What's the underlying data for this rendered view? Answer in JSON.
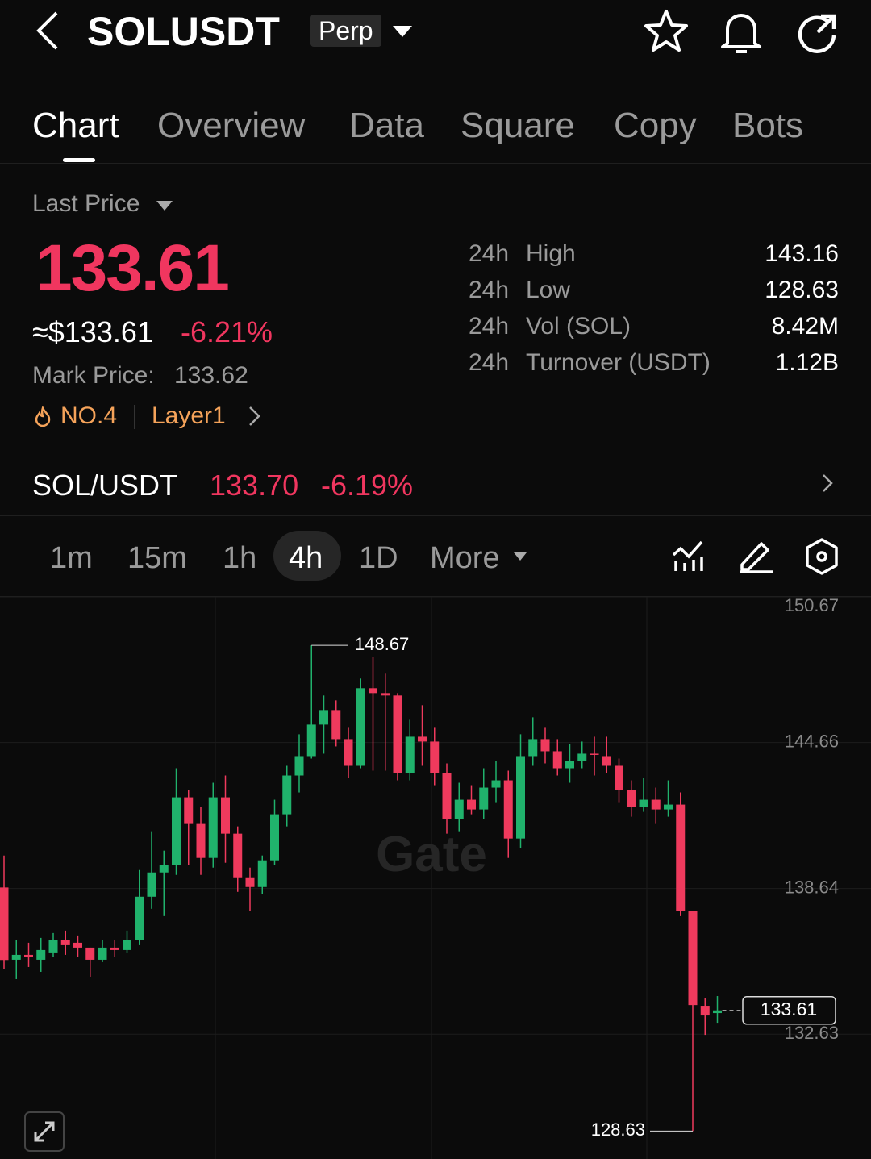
{
  "header": {
    "symbol": "SOLUSDT",
    "badge": "Perp"
  },
  "tabs": [
    "Chart",
    "Overview",
    "Data",
    "Square",
    "Copy",
    "Bots"
  ],
  "price": {
    "label": "Last Price",
    "last": "133.61",
    "usd": "≈$133.61",
    "change": "-6.21%",
    "mark_label": "Mark Price:",
    "mark": "133.62",
    "rank": "NO.4",
    "sector": "Layer1"
  },
  "stats": [
    {
      "period": "24h",
      "name": "High",
      "value": "143.16"
    },
    {
      "period": "24h",
      "name": "Low",
      "value": "128.63"
    },
    {
      "period": "24h",
      "name": "Vol (SOL)",
      "value": "8.42M"
    },
    {
      "period": "24h",
      "name": "Turnover (USDT)",
      "value": "1.12B"
    }
  ],
  "spot": {
    "pair": "SOL/USDT",
    "price": "133.70",
    "change": "-6.19%"
  },
  "intervals": [
    "1m",
    "15m",
    "1h",
    "4h",
    "1D",
    "More"
  ],
  "chart_data": {
    "type": "candlestick",
    "watermark": "Gate",
    "ylim": [
      127.48,
      150.67
    ],
    "yticks": [
      150.67,
      144.66,
      138.64,
      132.63
    ],
    "grid": true,
    "up_color": "#20b26c",
    "down_color": "#ef3a5d",
    "open": [
      138.68,
      135.7,
      135.9,
      135.7,
      136.0,
      136.5,
      136.4,
      136.2,
      135.7,
      136.2,
      136.1,
      136.5,
      138.3,
      139.3,
      139.6,
      142.4,
      141.3,
      139.9,
      142.4,
      140.9,
      139.1,
      138.7,
      139.8,
      141.7,
      143.3,
      144.1,
      145.4,
      146.0,
      144.8,
      143.7,
      146.9,
      146.7,
      146.6,
      143.4,
      144.9,
      144.7,
      143.4,
      141.5,
      142.3,
      141.9,
      142.8,
      143.1,
      140.7,
      144.1,
      144.8,
      144.3,
      143.6,
      143.9,
      144.2,
      144.1,
      143.7,
      142.7,
      142.0,
      142.3,
      141.9,
      142.1,
      137.7,
      133.8,
      133.5
    ],
    "high": [
      140.0,
      136.5,
      136.4,
      136.6,
      136.8,
      136.9,
      136.7,
      136.2,
      136.5,
      136.5,
      136.9,
      139.4,
      141.0,
      140.2,
      143.6,
      142.7,
      142.0,
      143.0,
      143.3,
      141.2,
      139.5,
      140.0,
      142.3,
      143.7,
      145.0,
      148.67,
      146.6,
      146.4,
      145.3,
      147.3,
      148.2,
      147.5,
      146.7,
      145.6,
      146.2,
      145.3,
      143.8,
      143.0,
      142.9,
      143.6,
      143.9,
      143.5,
      145.0,
      145.7,
      145.3,
      144.8,
      144.6,
      144.7,
      144.9,
      144.9,
      144.0,
      143.1,
      143.2,
      142.8,
      143.1,
      142.6,
      137.7,
      134.1,
      134.2
    ],
    "low": [
      135.3,
      134.9,
      135.4,
      135.2,
      135.8,
      135.9,
      135.8,
      135.0,
      135.6,
      135.8,
      136.0,
      136.3,
      137.8,
      137.5,
      139.2,
      139.6,
      139.2,
      139.5,
      139.7,
      138.5,
      137.7,
      138.4,
      139.6,
      141.2,
      142.6,
      144.0,
      144.2,
      144.5,
      143.2,
      143.6,
      143.5,
      143.5,
      143.1,
      143.1,
      143.7,
      142.9,
      140.9,
      141.0,
      141.7,
      141.5,
      142.2,
      139.9,
      140.3,
      143.7,
      143.8,
      143.3,
      143.0,
      143.6,
      143.3,
      143.4,
      142.2,
      141.6,
      141.8,
      141.3,
      141.6,
      137.5,
      128.63,
      132.6,
      133.1
    ],
    "close": [
      135.69,
      135.9,
      135.8,
      136.1,
      136.5,
      136.3,
      136.2,
      135.7,
      136.2,
      136.1,
      136.5,
      138.3,
      139.3,
      139.6,
      142.4,
      141.3,
      139.9,
      142.4,
      140.9,
      139.1,
      138.7,
      139.8,
      141.7,
      143.3,
      144.1,
      145.4,
      146.0,
      144.8,
      143.7,
      146.9,
      146.7,
      146.6,
      143.4,
      144.9,
      144.7,
      143.4,
      141.5,
      142.3,
      141.9,
      142.8,
      143.1,
      140.7,
      144.1,
      144.8,
      144.3,
      143.6,
      143.9,
      144.2,
      144.15,
      143.7,
      142.7,
      142.0,
      142.3,
      141.9,
      142.1,
      137.7,
      133.83,
      133.4,
      133.61
    ]
  }
}
